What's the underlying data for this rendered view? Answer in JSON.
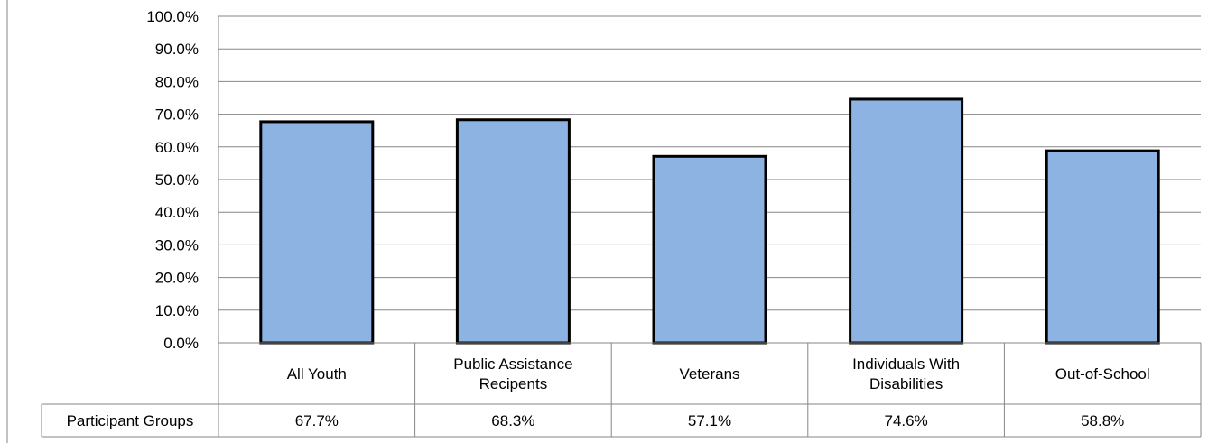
{
  "chart_data": {
    "type": "bar",
    "title": "",
    "xlabel": "",
    "ylabel": "",
    "categories": [
      "All Youth",
      "Public Assistance Recipents",
      "Veterans",
      "Individuals With Disabilities",
      "Out-of-School"
    ],
    "category_lines": [
      [
        "All Youth"
      ],
      [
        "Public Assistance",
        "Recipents"
      ],
      [
        "Veterans"
      ],
      [
        "Individuals With",
        "Disabilities"
      ],
      [
        "Out-of-School"
      ]
    ],
    "series": [
      {
        "name": "Participant Groups",
        "values": [
          67.7,
          68.3,
          57.1,
          74.6,
          58.8
        ],
        "labels": [
          "67.7%",
          "68.3%",
          "57.1%",
          "74.6%",
          "58.8%"
        ]
      }
    ],
    "ylim": [
      0,
      100
    ],
    "yticks": [
      0,
      10,
      20,
      30,
      40,
      50,
      60,
      70,
      80,
      90,
      100
    ],
    "ytick_labels": [
      "0.0%",
      "10.0%",
      "20.0%",
      "30.0%",
      "40.0%",
      "50.0%",
      "60.0%",
      "70.0%",
      "80.0%",
      "90.0%",
      "100.0%"
    ],
    "grid": true,
    "legend": "data-table",
    "colors": {
      "bar_fill": "#8db3e2",
      "bar_stroke": "#000000",
      "grid": "#868686"
    }
  }
}
